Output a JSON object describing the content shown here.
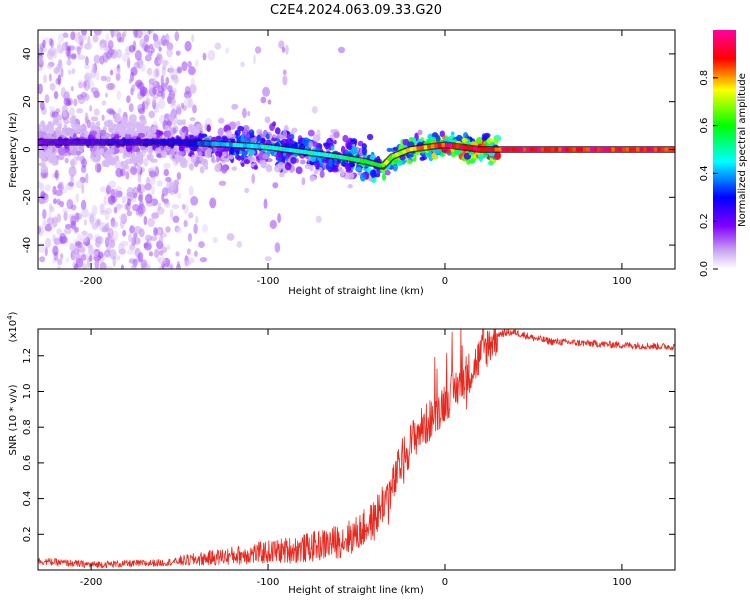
{
  "title": "C2E4.2024.063.09.33.G20",
  "colors": {
    "snr_line": "#e8281e",
    "ridge_dark": "#2a0a2e",
    "cmap": [
      "#ffffff",
      "#a020f0",
      "#0000ff",
      "#00ffff",
      "#00ff00",
      "#ffff00",
      "#ff0000",
      "#ff00a0"
    ]
  },
  "chart_data": [
    {
      "type": "heatmap",
      "name": "spectrogram",
      "xlabel": "Height of straight line (km)",
      "ylabel": "Frequency (Hz)",
      "xlim": [
        -230,
        130
      ],
      "ylim": [
        -50,
        50
      ],
      "xticks": [
        -200,
        -100,
        0,
        100
      ],
      "yticks": [
        -40,
        -20,
        0,
        20,
        40
      ],
      "xtick_labels": [
        "-200",
        "-100",
        "0",
        "100"
      ],
      "ytick_labels": [
        "-40",
        "-20",
        "0",
        "20",
        "40"
      ],
      "colorbar": {
        "label": "Normalized spectral amplitude",
        "range": [
          0,
          1
        ],
        "ticks": [
          0.0,
          0.2,
          0.4,
          0.6,
          0.8
        ],
        "tick_labels": [
          "0.0",
          "0.2",
          "0.4",
          "0.6",
          "0.8"
        ]
      },
      "ridge_frequency": {
        "x": [
          -230,
          -200,
          -150,
          -120,
          -100,
          -80,
          -60,
          -45,
          -35,
          -30,
          -20,
          -10,
          0,
          10,
          20,
          130
        ],
        "y": [
          3,
          3,
          3,
          2,
          1,
          -1,
          -3,
          -5,
          -7,
          -3,
          0,
          1,
          2,
          1,
          0,
          0
        ]
      },
      "ridge_amplitude": {
        "x": [
          -230,
          -150,
          -120,
          -100,
          -80,
          -60,
          -45,
          -35,
          -20,
          0,
          15,
          130
        ],
        "y": [
          0.2,
          0.3,
          0.45,
          0.5,
          0.5,
          0.5,
          0.6,
          0.7,
          0.8,
          0.95,
          0.95,
          0.95
        ]
      }
    },
    {
      "type": "line",
      "name": "snr",
      "xlabel": "Height of straight line (km)",
      "ylabel": "SNR (10 * v/v)",
      "y_multiplier": "(x10",
      "y_multiplier_exp": "4",
      "y_multiplier_close": ")",
      "xlim": [
        -230,
        130
      ],
      "ylim": [
        0,
        1.35
      ],
      "xticks": [
        -200,
        -100,
        0,
        100
      ],
      "yticks": [
        0.2,
        0.4,
        0.6,
        0.8,
        1.0,
        1.2
      ],
      "xtick_labels": [
        "-200",
        "-100",
        "0",
        "100"
      ],
      "ytick_labels": [
        "0.2",
        "0.4",
        "0.6",
        "0.8",
        "1.0",
        "1.2"
      ],
      "series": [
        {
          "x": [
            -230,
            -200,
            -160,
            -140,
            -120,
            -100,
            -80,
            -60,
            -50,
            -40,
            -35,
            -30,
            -25,
            -20,
            -15,
            -10,
            -5,
            0,
            5,
            10,
            15,
            20,
            25,
            30,
            35,
            40,
            50,
            60,
            80,
            100,
            130
          ],
          "y": [
            0.05,
            0.03,
            0.04,
            0.06,
            0.08,
            0.1,
            0.12,
            0.16,
            0.2,
            0.28,
            0.38,
            0.45,
            0.6,
            0.7,
            0.78,
            0.82,
            0.88,
            0.95,
            1.0,
            1.07,
            1.12,
            1.2,
            1.27,
            1.32,
            1.33,
            1.33,
            1.3,
            1.28,
            1.27,
            1.26,
            1.25
          ]
        }
      ]
    }
  ]
}
